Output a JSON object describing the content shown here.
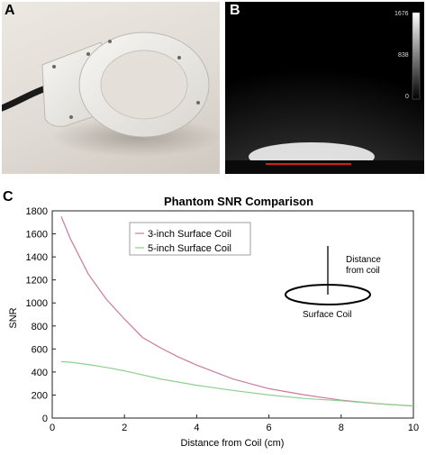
{
  "panels": {
    "a_label": "A",
    "b_label": "B",
    "c_label": "C"
  },
  "photo": {
    "description_icon": "coil-photo"
  },
  "mri": {
    "colorbar_max": "1676",
    "colorbar_mid": "838",
    "colorbar_min": "0"
  },
  "chart_data": {
    "type": "line",
    "title": "Phantom SNR Comparison",
    "xlabel": "Distance from Coil (cm)",
    "ylabel": "SNR",
    "xlim": [
      0,
      10
    ],
    "ylim": [
      0,
      1800
    ],
    "xticks": [
      0,
      2,
      4,
      6,
      8,
      10
    ],
    "yticks": [
      0,
      200,
      400,
      600,
      800,
      1000,
      1200,
      1400,
      1600,
      1800
    ],
    "grid": false,
    "legend_position": "top-left",
    "series": [
      {
        "name": "3-inch Surface Coil",
        "color": "#c97aa0",
        "x": [
          0.25,
          0.5,
          1.0,
          1.5,
          2.0,
          2.5,
          3.0,
          3.5,
          4.0,
          5.0,
          6.0,
          7.0,
          8.0,
          9.0,
          10.0
        ],
        "y": [
          1750,
          1560,
          1250,
          1030,
          860,
          700,
          610,
          530,
          460,
          340,
          255,
          200,
          155,
          125,
          105
        ]
      },
      {
        "name": "5-inch Surface Coil",
        "color": "#8fcf8f",
        "x": [
          0.25,
          0.5,
          1.0,
          1.5,
          2.0,
          3.0,
          4.0,
          5.0,
          6.0,
          7.0,
          8.0,
          9.0,
          10.0
        ],
        "y": [
          490,
          485,
          465,
          440,
          410,
          340,
          285,
          240,
          200,
          170,
          150,
          125,
          105
        ]
      }
    ],
    "annotations": {
      "distance_label_line1": "Distance",
      "distance_label_line2": "from coil",
      "coil_label": "Surface Coil"
    }
  }
}
